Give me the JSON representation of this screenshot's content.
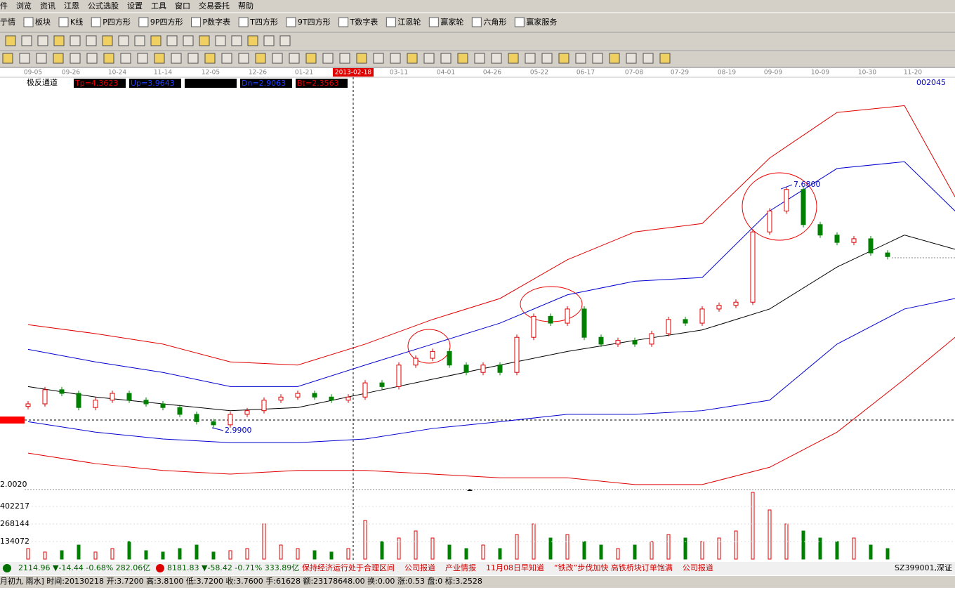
{
  "menu": [
    "件",
    "浏览",
    "资讯",
    "江恩",
    "公式选股",
    "设置",
    "工具",
    "窗口",
    "交易委托",
    "帮助"
  ],
  "toolbar": [
    "亍情",
    "板块",
    "K线",
    "P四方形",
    "9P四方形",
    "P数字表",
    "T四方形",
    "9T四方形",
    "T数字表",
    "江恩轮",
    "赢家轮",
    "六角形",
    "赢家服务"
  ],
  "chart_data": {
    "type": "candlestick",
    "indicator": "极反通道",
    "params": [
      "Tp=4.3623",
      "Up=3.9643",
      "",
      "Dn=2.9063",
      "Bt=2.3563"
    ],
    "code": "002045",
    "dates": [
      "09-05",
      "09-26",
      "10-24",
      "11-14",
      "12-05",
      "12-26",
      "01-21",
      "2013-02-18",
      "03-11",
      "04-01",
      "04-26",
      "05-22",
      "06-17",
      "07-08",
      "07-29",
      "08-19",
      "09-09",
      "10-09",
      "10-30",
      "11-20"
    ],
    "open": [
      3.45,
      3.5,
      3.77,
      3.7,
      3.43,
      3.57,
      3.7,
      3.57,
      3.5,
      3.43,
      3.3,
      3.16,
      3.1,
      3.3,
      3.37,
      3.57,
      3.63,
      3.7,
      3.63,
      3.57,
      3.63,
      3.9,
      3.83,
      4.24,
      4.37,
      4.5,
      4.24,
      4.1,
      4.24,
      4.1,
      4.77,
      5.17,
      5.04,
      5.31,
      4.77,
      4.64,
      4.71,
      4.64,
      4.84,
      5.11,
      5.04,
      5.31,
      5.38,
      5.44,
      6.78,
      7.18,
      7.59,
      6.92,
      6.72,
      6.58,
      6.65,
      6.38
    ],
    "close": [
      3.5,
      3.77,
      3.7,
      3.43,
      3.57,
      3.7,
      3.57,
      3.5,
      3.43,
      3.3,
      3.16,
      3.1,
      3.3,
      3.37,
      3.57,
      3.63,
      3.7,
      3.63,
      3.57,
      3.63,
      3.9,
      3.83,
      4.24,
      4.37,
      4.5,
      4.24,
      4.1,
      4.24,
      4.1,
      4.77,
      5.17,
      5.04,
      5.31,
      4.77,
      4.64,
      4.71,
      4.64,
      4.84,
      5.11,
      5.04,
      5.31,
      5.38,
      5.44,
      6.78,
      7.18,
      7.59,
      6.92,
      6.72,
      6.58,
      6.65,
      6.38,
      6.31
    ],
    "xlim": [
      0,
      55
    ],
    "ylim": [
      1.865,
      9.53
    ],
    "channels": [
      {
        "color": "#e00000",
        "x": [
          0,
          4,
          8,
          12,
          16,
          20,
          24,
          28,
          32,
          36,
          40,
          44,
          48,
          52,
          55
        ],
        "values": [
          5.01,
          4.84,
          4.64,
          4.3,
          4.24,
          4.64,
          5.11,
          5.51,
          6.25,
          6.78,
          6.94,
          8.19,
          9.06,
          9.19,
          7.45
        ]
      },
      {
        "color": "#0000d0",
        "x": [
          0,
          4,
          8,
          12,
          16,
          20,
          24,
          28,
          32,
          36,
          40,
          44,
          48,
          52,
          55
        ],
        "values": [
          4.54,
          4.3,
          4.1,
          3.83,
          3.83,
          4.24,
          4.64,
          5.04,
          5.58,
          5.84,
          5.91,
          7.18,
          7.99,
          8.12,
          7.18
        ]
      },
      {
        "color": "#000000",
        "x": [
          0,
          4,
          8,
          12,
          16,
          20,
          24,
          28,
          32,
          36,
          40,
          44,
          48,
          52,
          55
        ],
        "values": [
          3.83,
          3.63,
          3.5,
          3.37,
          3.43,
          3.7,
          3.97,
          4.24,
          4.5,
          4.71,
          4.91,
          5.31,
          6.11,
          6.72,
          6.45
        ]
      },
      {
        "color": "#0000d0",
        "x": [
          0,
          4,
          8,
          12,
          16,
          20,
          24,
          28,
          32,
          36,
          40,
          44,
          48,
          52,
          55
        ],
        "values": [
          3.16,
          2.96,
          2.83,
          2.76,
          2.76,
          2.83,
          3.03,
          3.16,
          3.3,
          3.3,
          3.37,
          3.57,
          4.64,
          5.31,
          5.51
        ]
      },
      {
        "color": "#e00000",
        "x": [
          0,
          4,
          8,
          12,
          16,
          20,
          24,
          28,
          32,
          36,
          40,
          44,
          48,
          52,
          55
        ],
        "values": [
          2.56,
          2.36,
          2.23,
          2.16,
          2.23,
          2.23,
          2.16,
          2.09,
          2.09,
          1.96,
          1.96,
          2.29,
          2.96,
          3.97,
          4.77
        ]
      }
    ],
    "annotations": [
      {
        "value": 2.99,
        "label": "2.9900"
      },
      {
        "value": 7.68,
        "label": "7.6800"
      }
    ],
    "price_label": "2.0020",
    "volume": {
      "values": [
        80445,
        53630,
        64356,
        107260,
        53630,
        80445,
        134075,
        64356,
        53630,
        80445,
        107260,
        53630,
        64356,
        80445,
        268150,
        107260,
        80445,
        64356,
        53630,
        80445,
        294965,
        134075,
        160890,
        214520,
        160890,
        107260,
        80445,
        107260,
        80445,
        187705,
        268150,
        160890,
        187705,
        134075,
        107260,
        80445,
        107260,
        134075,
        187705,
        160890,
        134075,
        160890,
        214520,
        509485,
        375410,
        268150,
        214520,
        160890,
        134075,
        160890,
        107260,
        80445
      ],
      "ylim": [
        0,
        530937
      ],
      "yticks": [
        134072,
        268144,
        402217
      ]
    }
  },
  "ticker": {
    "sh": "2114.96 ▼-14.44 -0.68% 282.06亿",
    "sz": "8181.83 ▼-58.42 -0.71% 333.89亿",
    "news": "保持经济运行处于合理区间    公司报道    产业情报    11月08日早知道    “铁改”步伐加快 高铁桥块订单饱满    公司报道",
    "code": "SZ399001,深证"
  },
  "status": "月初九 雨水] 时间:20130218 开:3.7200 高:3.8100 低:3.7200 收:3.7600 手:61628 额:23178648.00 换:0.00 涨:0.53 盘:0 标:3.2528"
}
